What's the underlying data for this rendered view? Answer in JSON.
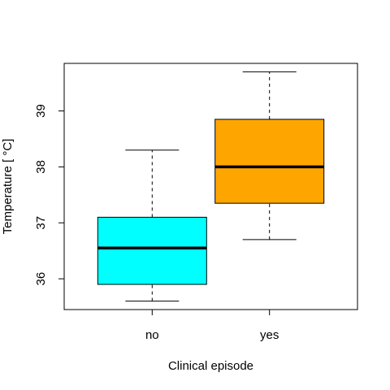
{
  "chart_data": {
    "type": "boxplot",
    "title": "",
    "xlabel": "Clinical episode",
    "ylabel": "Temperature [ °C]",
    "ylim": [
      35.45,
      39.85
    ],
    "yticks": [
      36,
      37,
      38,
      39
    ],
    "ytick_labels": [
      "36",
      "37",
      "38",
      "39"
    ],
    "grid": false,
    "categories": [
      "no",
      "yes"
    ],
    "boxes": [
      {
        "category": "no",
        "whisker_low": 35.6,
        "q1": 35.9,
        "median": 36.55,
        "q3": 37.1,
        "whisker_high": 38.3,
        "color": "#00ffff"
      },
      {
        "category": "yes",
        "whisker_low": 36.7,
        "q1": 37.35,
        "median": 38.0,
        "q3": 38.85,
        "whisker_high": 39.7,
        "color": "#ffa500"
      }
    ]
  }
}
